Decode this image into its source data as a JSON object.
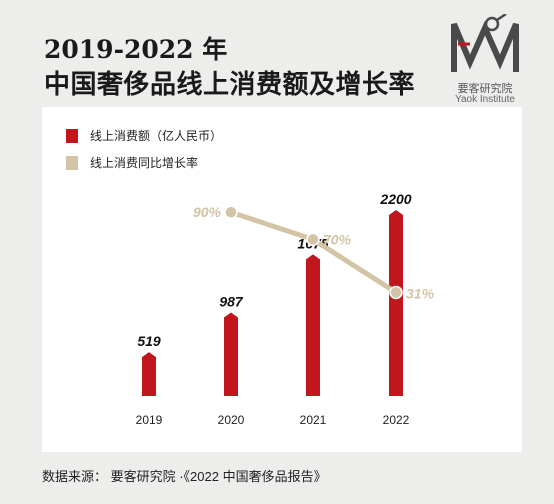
{
  "header": {
    "title_line1": "2019-2022 年",
    "title_line2": "中国奢侈品线上消费额及增长率"
  },
  "logo": {
    "name_cn": "要客研究院",
    "name_en": "Yaok Institute"
  },
  "colors": {
    "bar": "#c0161c",
    "line": "#d2c4a5",
    "background": "#ededec",
    "panel": "#ffffff"
  },
  "footer": {
    "source": "数据来源：  要客研究院 ·《2022 中国奢侈品报告》"
  },
  "chart_data": {
    "type": "bar",
    "categories": [
      "2019",
      "2020",
      "2021",
      "2022"
    ],
    "series": [
      {
        "name": "线上消费额（亿人民币）",
        "type": "bar",
        "values": [
          519,
          987,
          1675,
          2200
        ],
        "labels": [
          "519",
          "987",
          "1675",
          "2200"
        ]
      },
      {
        "name": "线上消费同比增长率",
        "type": "line",
        "x": [
          "2020",
          "2021",
          "2022"
        ],
        "values": [
          90,
          70,
          31
        ],
        "labels": [
          "90%",
          "70%",
          "31%"
        ]
      }
    ],
    "legend_position": "top-left",
    "grid": false
  }
}
